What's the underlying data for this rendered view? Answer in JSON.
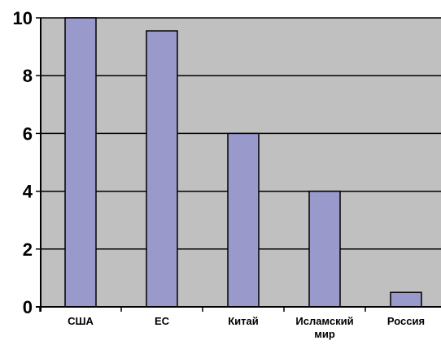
{
  "chart_data": {
    "type": "bar",
    "categories": [
      [
        "США"
      ],
      [
        "ЕС"
      ],
      [
        "Китай"
      ],
      [
        "Исламский",
        "мир"
      ],
      [
        "Россия"
      ]
    ],
    "values": [
      10,
      9.55,
      6,
      4,
      0.5
    ],
    "ylim": [
      0,
      10
    ],
    "yticks": [
      "0",
      "2",
      "4",
      "6",
      "8",
      "10"
    ],
    "grid": true,
    "colors": {
      "plot_background": "#c0c0c0",
      "bar_fill": "#9999cc",
      "bar_stroke": "#000000",
      "gridline": "#000000"
    }
  }
}
